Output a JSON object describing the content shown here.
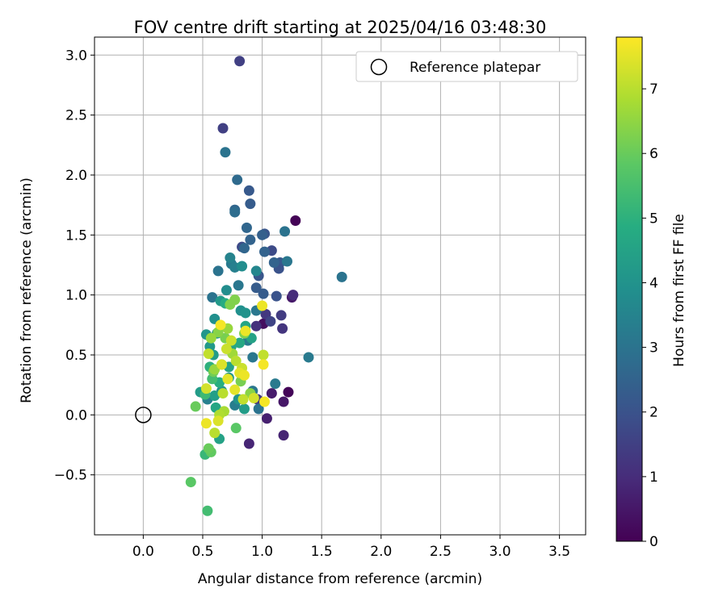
{
  "chart_data": {
    "type": "scatter",
    "title": "FOV centre drift starting at 2025/04/16 03:48:30",
    "xlabel": "Angular distance from reference (arcmin)",
    "ylabel": "Rotation from reference (arcmin)",
    "xlim": [
      -0.41,
      3.72
    ],
    "ylim": [
      -1.0,
      3.15
    ],
    "x_ticks": [
      0.0,
      0.5,
      1.0,
      1.5,
      2.0,
      2.5,
      3.0,
      3.5
    ],
    "x_tick_labels": [
      "0.0",
      "0.5",
      "1.0",
      "1.5",
      "2.0",
      "2.5",
      "3.0",
      "3.5"
    ],
    "y_ticks": [
      -0.5,
      0.0,
      0.5,
      1.0,
      1.5,
      2.0,
      2.5,
      3.0
    ],
    "y_tick_labels": [
      "−0.5",
      "0.0",
      "0.5",
      "1.0",
      "1.5",
      "2.0",
      "2.5",
      "3.0"
    ],
    "grid": true,
    "legend": {
      "position": "top-right",
      "entries": [
        "Reference platepar"
      ]
    },
    "reference_point": {
      "x": 0.0,
      "y": 0.0,
      "label": "Reference platepar"
    },
    "colorbar": {
      "label": "Hours from first FF file",
      "colormap": "viridis",
      "range": [
        0,
        7.8
      ],
      "ticks": [
        0,
        1,
        2,
        3,
        4,
        5,
        6,
        7
      ],
      "tick_labels": [
        "0",
        "1",
        "2",
        "3",
        "4",
        "5",
        "6",
        "7"
      ]
    },
    "points": [
      {
        "x": 1.28,
        "y": 1.62,
        "c": 0.05
      },
      {
        "x": 1.22,
        "y": 0.19,
        "c": 0.1
      },
      {
        "x": 1.01,
        "y": 0.76,
        "c": 0.3
      },
      {
        "x": 1.18,
        "y": 0.11,
        "c": 0.5
      },
      {
        "x": 1.25,
        "y": 0.98,
        "c": 0.55
      },
      {
        "x": 1.08,
        "y": 0.18,
        "c": 0.6
      },
      {
        "x": 1.04,
        "y": -0.03,
        "c": 0.7
      },
      {
        "x": 1.18,
        "y": -0.17,
        "c": 0.8
      },
      {
        "x": 0.89,
        "y": -0.24,
        "c": 0.85
      },
      {
        "x": 1.26,
        "y": 1.0,
        "c": 1.0
      },
      {
        "x": 0.95,
        "y": 0.74,
        "c": 1.1
      },
      {
        "x": 1.17,
        "y": 0.72,
        "c": 1.2
      },
      {
        "x": 0.96,
        "y": 0.13,
        "c": 1.3
      },
      {
        "x": 1.03,
        "y": 0.84,
        "c": 1.3
      },
      {
        "x": 0.81,
        "y": 2.95,
        "c": 1.5
      },
      {
        "x": 0.67,
        "y": 2.39,
        "c": 1.5
      },
      {
        "x": 1.16,
        "y": 0.83,
        "c": 1.4
      },
      {
        "x": 1.07,
        "y": 0.78,
        "c": 1.6
      },
      {
        "x": 0.83,
        "y": 1.4,
        "c": 1.8
      },
      {
        "x": 1.08,
        "y": 1.37,
        "c": 1.8
      },
      {
        "x": 1.12,
        "y": 0.99,
        "c": 2.0
      },
      {
        "x": 0.89,
        "y": 1.87,
        "c": 2.2
      },
      {
        "x": 0.9,
        "y": 1.76,
        "c": 2.3
      },
      {
        "x": 1.15,
        "y": 1.27,
        "c": 2.2
      },
      {
        "x": 1.02,
        "y": 1.51,
        "c": 2.1
      },
      {
        "x": 1.14,
        "y": 1.22,
        "c": 2.0
      },
      {
        "x": 0.97,
        "y": 1.16,
        "c": 2.1
      },
      {
        "x": 1.01,
        "y": 1.01,
        "c": 2.3
      },
      {
        "x": 0.95,
        "y": 1.06,
        "c": 2.3
      },
      {
        "x": 0.87,
        "y": 1.56,
        "c": 2.6
      },
      {
        "x": 0.79,
        "y": 1.96,
        "c": 2.7
      },
      {
        "x": 0.77,
        "y": 1.71,
        "c": 2.6
      },
      {
        "x": 0.9,
        "y": 1.46,
        "c": 2.5
      },
      {
        "x": 1.0,
        "y": 1.5,
        "c": 2.4
      },
      {
        "x": 1.02,
        "y": 1.36,
        "c": 2.5
      },
      {
        "x": 0.85,
        "y": 1.39,
        "c": 2.6
      },
      {
        "x": 1.1,
        "y": 1.27,
        "c": 2.5
      },
      {
        "x": 0.77,
        "y": 1.69,
        "c": 2.8
      },
      {
        "x": 0.69,
        "y": 2.19,
        "c": 3.0
      },
      {
        "x": 1.19,
        "y": 1.53,
        "c": 3.0
      },
      {
        "x": 1.21,
        "y": 1.28,
        "c": 3.1
      },
      {
        "x": 1.67,
        "y": 1.15,
        "c": 3.0
      },
      {
        "x": 0.63,
        "y": 1.2,
        "c": 3.0
      },
      {
        "x": 0.74,
        "y": 1.26,
        "c": 3.2
      },
      {
        "x": 0.8,
        "y": 1.08,
        "c": 3.1
      },
      {
        "x": 0.58,
        "y": 0.98,
        "c": 3.0
      },
      {
        "x": 1.11,
        "y": 0.26,
        "c": 3.2
      },
      {
        "x": 1.39,
        "y": 0.48,
        "c": 3.2
      },
      {
        "x": 0.92,
        "y": 0.48,
        "c": 3.1
      },
      {
        "x": 0.97,
        "y": 0.05,
        "c": 3.0
      },
      {
        "x": 0.92,
        "y": 0.2,
        "c": 3.1
      },
      {
        "x": 0.95,
        "y": 0.87,
        "c": 3.1
      },
      {
        "x": 0.88,
        "y": 0.62,
        "c": 3.3
      },
      {
        "x": 0.77,
        "y": 0.08,
        "c": 3.3
      },
      {
        "x": 0.54,
        "y": 0.13,
        "c": 3.4
      },
      {
        "x": 0.77,
        "y": 1.23,
        "c": 3.4
      },
      {
        "x": 0.73,
        "y": 1.31,
        "c": 3.5
      },
      {
        "x": 0.95,
        "y": 1.2,
        "c": 3.6
      },
      {
        "x": 0.83,
        "y": 1.24,
        "c": 3.8
      },
      {
        "x": 0.7,
        "y": 1.04,
        "c": 3.8
      },
      {
        "x": 0.6,
        "y": 0.8,
        "c": 3.9
      },
      {
        "x": 0.82,
        "y": 0.87,
        "c": 3.9
      },
      {
        "x": 0.86,
        "y": 0.85,
        "c": 4.0
      },
      {
        "x": 0.62,
        "y": 0.68,
        "c": 4.1
      },
      {
        "x": 0.65,
        "y": 0.95,
        "c": 4.2
      },
      {
        "x": 0.53,
        "y": 0.67,
        "c": 4.1
      },
      {
        "x": 0.56,
        "y": 0.57,
        "c": 4.2
      },
      {
        "x": 0.59,
        "y": 0.5,
        "c": 4.3
      },
      {
        "x": 0.66,
        "y": 0.2,
        "c": 4.0
      },
      {
        "x": 0.72,
        "y": 0.31,
        "c": 4.1
      },
      {
        "x": 0.8,
        "y": 0.13,
        "c": 4.0
      },
      {
        "x": 0.85,
        "y": 0.05,
        "c": 4.3
      },
      {
        "x": 0.48,
        "y": 0.19,
        "c": 4.3
      },
      {
        "x": 0.6,
        "y": 0.16,
        "c": 4.4
      },
      {
        "x": 0.64,
        "y": -0.2,
        "c": 4.5
      },
      {
        "x": 0.72,
        "y": 0.4,
        "c": 4.5
      },
      {
        "x": 0.61,
        "y": 0.06,
        "c": 4.6
      },
      {
        "x": 0.74,
        "y": 0.57,
        "c": 4.6
      },
      {
        "x": 0.81,
        "y": 0.6,
        "c": 4.7
      },
      {
        "x": 0.91,
        "y": 0.64,
        "c": 4.5
      },
      {
        "x": 0.86,
        "y": 0.74,
        "c": 4.6
      },
      {
        "x": 0.69,
        "y": 0.93,
        "c": 4.8
      },
      {
        "x": 0.64,
        "y": 0.27,
        "c": 4.9
      },
      {
        "x": 0.56,
        "y": 0.4,
        "c": 5.0
      },
      {
        "x": 0.52,
        "y": -0.33,
        "c": 5.2
      },
      {
        "x": 0.54,
        "y": -0.8,
        "c": 5.4
      },
      {
        "x": 0.52,
        "y": 0.17,
        "c": 5.3
      },
      {
        "x": 0.58,
        "y": 0.3,
        "c": 5.4
      },
      {
        "x": 0.78,
        "y": -0.11,
        "c": 5.8
      },
      {
        "x": 0.4,
        "y": -0.56,
        "c": 5.8
      },
      {
        "x": 0.57,
        "y": -0.31,
        "c": 5.9
      },
      {
        "x": 0.55,
        "y": -0.28,
        "c": 6.0
      },
      {
        "x": 0.44,
        "y": 0.07,
        "c": 6.0
      },
      {
        "x": 0.59,
        "y": 0.36,
        "c": 6.1
      },
      {
        "x": 0.66,
        "y": 0.42,
        "c": 6.1
      },
      {
        "x": 0.69,
        "y": 0.64,
        "c": 6.2
      },
      {
        "x": 0.73,
        "y": 0.92,
        "c": 6.3
      },
      {
        "x": 0.77,
        "y": 0.96,
        "c": 6.3
      },
      {
        "x": 0.82,
        "y": 0.28,
        "c": 6.2
      },
      {
        "x": 0.85,
        "y": 0.68,
        "c": 6.3
      },
      {
        "x": 0.9,
        "y": 0.18,
        "c": 6.4
      },
      {
        "x": 0.63,
        "y": 0.69,
        "c": 6.4
      },
      {
        "x": 0.6,
        "y": 0.38,
        "c": 6.6
      },
      {
        "x": 0.57,
        "y": 0.64,
        "c": 6.6
      },
      {
        "x": 0.71,
        "y": 0.72,
        "c": 6.6
      },
      {
        "x": 0.75,
        "y": 0.51,
        "c": 6.7
      },
      {
        "x": 0.68,
        "y": 0.03,
        "c": 6.8
      },
      {
        "x": 0.64,
        "y": 0.0,
        "c": 6.9
      },
      {
        "x": 0.6,
        "y": -0.15,
        "c": 7.0
      },
      {
        "x": 0.67,
        "y": 0.18,
        "c": 7.0
      },
      {
        "x": 0.78,
        "y": 0.45,
        "c": 7.0
      },
      {
        "x": 0.84,
        "y": 0.13,
        "c": 7.1
      },
      {
        "x": 0.55,
        "y": 0.51,
        "c": 7.1
      },
      {
        "x": 0.7,
        "y": 0.55,
        "c": 7.2
      },
      {
        "x": 0.74,
        "y": 0.62,
        "c": 7.2
      },
      {
        "x": 0.83,
        "y": 0.39,
        "c": 7.2
      },
      {
        "x": 0.93,
        "y": 0.14,
        "c": 7.3
      },
      {
        "x": 1.01,
        "y": 0.5,
        "c": 7.1
      },
      {
        "x": 0.53,
        "y": 0.22,
        "c": 7.3
      },
      {
        "x": 0.63,
        "y": -0.05,
        "c": 7.4
      },
      {
        "x": 0.66,
        "y": 0.42,
        "c": 7.4
      },
      {
        "x": 0.71,
        "y": 0.3,
        "c": 7.5
      },
      {
        "x": 0.77,
        "y": 0.21,
        "c": 7.5
      },
      {
        "x": 0.81,
        "y": 0.35,
        "c": 7.5
      },
      {
        "x": 0.86,
        "y": 0.7,
        "c": 7.6
      },
      {
        "x": 1.0,
        "y": 0.91,
        "c": 7.6
      },
      {
        "x": 1.01,
        "y": 0.42,
        "c": 7.7
      },
      {
        "x": 0.53,
        "y": -0.07,
        "c": 7.6
      },
      {
        "x": 0.65,
        "y": 0.75,
        "c": 7.7
      },
      {
        "x": 1.02,
        "y": 0.11,
        "c": 7.7
      },
      {
        "x": 0.85,
        "y": 0.33,
        "c": 7.6
      }
    ]
  }
}
